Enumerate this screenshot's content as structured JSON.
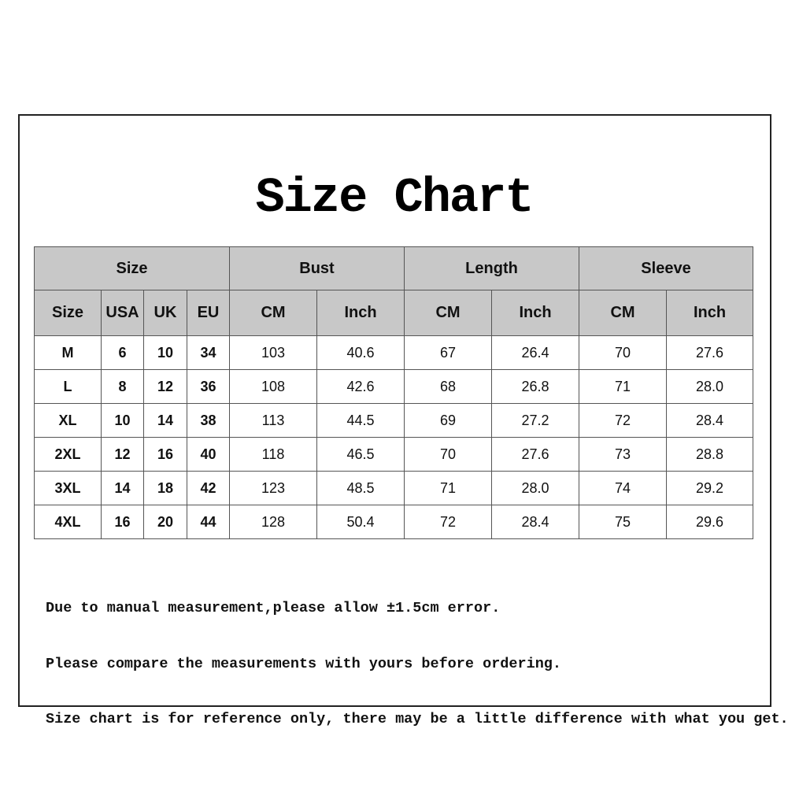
{
  "title": "Size Chart",
  "table": {
    "groups": [
      "Size",
      "Bust",
      "Length",
      "Sleeve"
    ],
    "subheaders": [
      "Size",
      "USA",
      "UK",
      "EU",
      "CM",
      "Inch",
      "CM",
      "Inch",
      "CM",
      "Inch"
    ],
    "rows": [
      [
        "M",
        "6",
        "10",
        "34",
        "103",
        "40.6",
        "67",
        "26.4",
        "70",
        "27.6"
      ],
      [
        "L",
        "8",
        "12",
        "36",
        "108",
        "42.6",
        "68",
        "26.8",
        "71",
        "28.0"
      ],
      [
        "XL",
        "10",
        "14",
        "38",
        "113",
        "44.5",
        "69",
        "27.2",
        "72",
        "28.4"
      ],
      [
        "2XL",
        "12",
        "16",
        "40",
        "118",
        "46.5",
        "70",
        "27.6",
        "73",
        "28.8"
      ],
      [
        "3XL",
        "14",
        "18",
        "42",
        "123",
        "48.5",
        "71",
        "28.0",
        "74",
        "29.2"
      ],
      [
        "4XL",
        "16",
        "20",
        "44",
        "128",
        "50.4",
        "72",
        "28.4",
        "75",
        "29.6"
      ]
    ]
  },
  "notes": [
    "Due to manual measurement,please allow ±1.5cm error.",
    "Please compare the measurements with yours before ordering.",
    "Size chart is for reference only, there may be a little difference with what you get."
  ],
  "colors": {
    "header_bg": "#c8c8c8",
    "border": "#555555"
  }
}
